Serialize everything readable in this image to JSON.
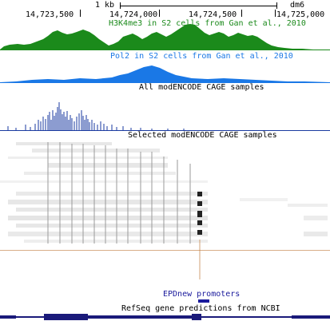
{
  "browser": {
    "chrom": "dm6",
    "scale_label": "1 kb",
    "positions": [
      "14,723,500",
      "14,724,000",
      "14,724,500",
      "14,725,000"
    ]
  },
  "tracks": {
    "h3k4me3": {
      "label": "H3K4me3 in S2 cells from Gan et al., 2010",
      "color": "#1b8a1b"
    },
    "pol2": {
      "label": "Pol2 in S2 cells from Gan et al., 2010",
      "color": "#1a78e6"
    },
    "cage_all": {
      "label": "All modENCODE CAGE samples",
      "color": "#1a3aa0"
    },
    "cage_selected": {
      "label": "Selected modENCODE CAGE samples"
    },
    "epd": {
      "label": "EPDnew promoters",
      "color": "#1a1a9c"
    },
    "refseq": {
      "label": "RefSeq gene predictions from NCBI",
      "color": "#1a1a7a"
    }
  }
}
